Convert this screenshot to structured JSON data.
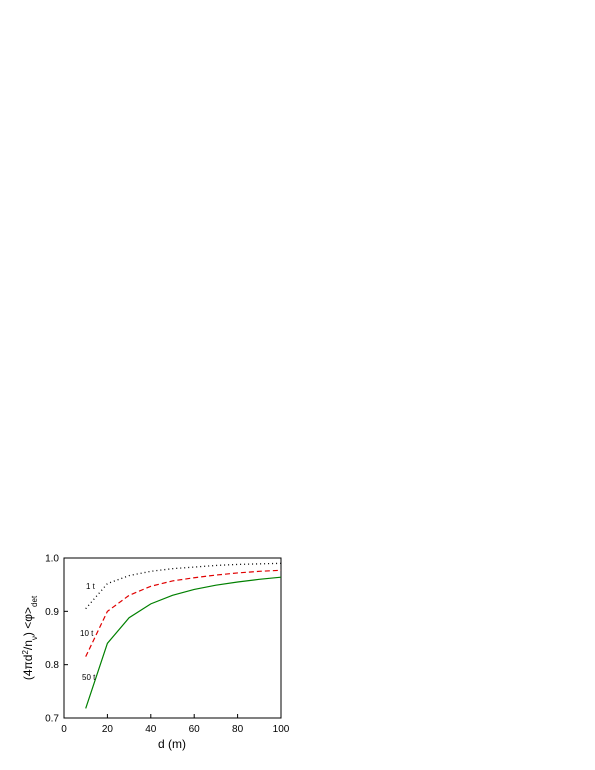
{
  "chart_data": {
    "type": "line",
    "x_label": "d (m)",
    "y_label": [
      "(4πd",
      "2",
      "/n",
      "ν",
      ") <φ>",
      "det"
    ],
    "x": [
      10,
      20,
      30,
      40,
      50,
      60,
      70,
      80,
      90,
      100
    ],
    "series": [
      {
        "name": "1 t",
        "color": "#000000",
        "style": "dotted",
        "values": [
          0.905,
          0.952,
          0.967,
          0.975,
          0.98,
          0.983,
          0.986,
          0.988,
          0.989,
          0.99
        ]
      },
      {
        "name": "10 t",
        "color": "#e00000",
        "style": "dashed",
        "values": [
          0.815,
          0.9,
          0.93,
          0.947,
          0.957,
          0.963,
          0.968,
          0.972,
          0.975,
          0.977
        ]
      },
      {
        "name": "50 t",
        "color": "#008000",
        "style": "solid",
        "values": [
          0.718,
          0.84,
          0.888,
          0.914,
          0.93,
          0.941,
          0.949,
          0.955,
          0.96,
          0.964
        ]
      }
    ],
    "xlim": [
      0,
      100
    ],
    "ylim": [
      0.7,
      1.0
    ],
    "xticks": [
      0,
      20,
      40,
      60,
      80,
      100
    ],
    "yticks": [
      0.7,
      0.8,
      0.9,
      {
        "value": 1.0,
        "label": "1.0"
      }
    ]
  }
}
